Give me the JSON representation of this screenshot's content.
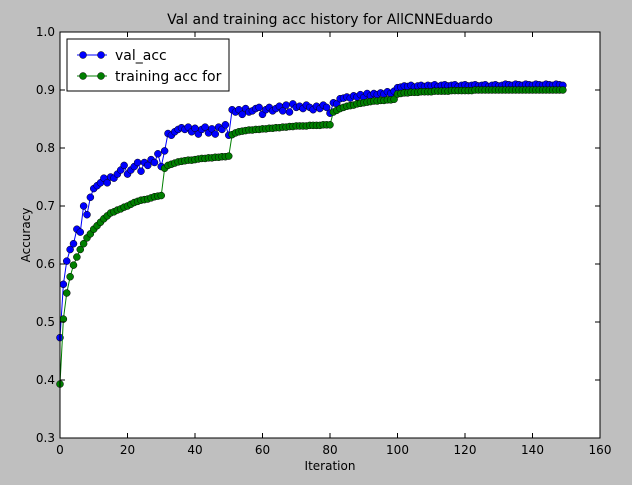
{
  "chart_data": {
    "type": "line",
    "title": "Val and training acc history for AllCNNEduardo",
    "xlabel": "Iteration",
    "ylabel": "Accuracy",
    "xlim": [
      0,
      160
    ],
    "ylim": [
      0.3,
      1.0
    ],
    "xticks": [
      0,
      20,
      40,
      60,
      80,
      100,
      120,
      140,
      160
    ],
    "yticks": [
      0.3,
      0.4,
      0.5,
      0.6,
      0.7,
      0.8,
      0.9,
      1.0
    ],
    "grid": false,
    "legend_position": "top-left",
    "series": [
      {
        "name": "val_acc",
        "color": "#0000ff",
        "marker": "circle",
        "x": [
          0,
          1,
          2,
          3,
          4,
          5,
          6,
          7,
          8,
          9,
          10,
          11,
          12,
          13,
          14,
          15,
          16,
          17,
          18,
          19,
          20,
          21,
          22,
          23,
          24,
          25,
          26,
          27,
          28,
          29,
          30,
          31,
          32,
          33,
          34,
          35,
          36,
          37,
          38,
          39,
          40,
          41,
          42,
          43,
          44,
          45,
          46,
          47,
          48,
          49,
          50,
          51,
          52,
          53,
          54,
          55,
          56,
          57,
          58,
          59,
          60,
          61,
          62,
          63,
          64,
          65,
          66,
          67,
          68,
          69,
          70,
          71,
          72,
          73,
          74,
          75,
          76,
          77,
          78,
          79,
          80,
          81,
          82,
          83,
          84,
          85,
          86,
          87,
          88,
          89,
          90,
          91,
          92,
          93,
          94,
          95,
          96,
          97,
          98,
          99,
          100,
          101,
          102,
          103,
          104,
          105,
          106,
          107,
          108,
          109,
          110,
          111,
          112,
          113,
          114,
          115,
          116,
          117,
          118,
          119,
          120,
          121,
          122,
          123,
          124,
          125,
          126,
          127,
          128,
          129,
          130,
          131,
          132,
          133,
          134,
          135,
          136,
          137,
          138,
          139,
          140,
          141,
          142,
          143,
          144,
          145,
          146,
          147,
          148,
          149
        ],
        "y": [
          0.473,
          0.565,
          0.605,
          0.625,
          0.635,
          0.66,
          0.655,
          0.7,
          0.685,
          0.715,
          0.73,
          0.735,
          0.74,
          0.748,
          0.74,
          0.75,
          0.748,
          0.755,
          0.762,
          0.77,
          0.755,
          0.762,
          0.768,
          0.775,
          0.76,
          0.775,
          0.77,
          0.78,
          0.775,
          0.79,
          0.768,
          0.795,
          0.825,
          0.822,
          0.828,
          0.832,
          0.835,
          0.832,
          0.836,
          0.828,
          0.834,
          0.824,
          0.832,
          0.836,
          0.826,
          0.833,
          0.824,
          0.836,
          0.832,
          0.84,
          0.822,
          0.866,
          0.862,
          0.866,
          0.858,
          0.868,
          0.862,
          0.864,
          0.868,
          0.87,
          0.858,
          0.866,
          0.87,
          0.864,
          0.868,
          0.872,
          0.864,
          0.874,
          0.862,
          0.876,
          0.87,
          0.872,
          0.868,
          0.874,
          0.87,
          0.866,
          0.872,
          0.868,
          0.874,
          0.87,
          0.86,
          0.878,
          0.876,
          0.885,
          0.886,
          0.888,
          0.886,
          0.89,
          0.888,
          0.892,
          0.887,
          0.894,
          0.89,
          0.894,
          0.892,
          0.895,
          0.893,
          0.897,
          0.894,
          0.898,
          0.904,
          0.905,
          0.907,
          0.906,
          0.908,
          0.905,
          0.907,
          0.908,
          0.906,
          0.908,
          0.907,
          0.909,
          0.906,
          0.908,
          0.909,
          0.907,
          0.908,
          0.909,
          0.906,
          0.908,
          0.909,
          0.907,
          0.908,
          0.909,
          0.907,
          0.908,
          0.909,
          0.906,
          0.908,
          0.909,
          0.907,
          0.908,
          0.91,
          0.909,
          0.908,
          0.91,
          0.909,
          0.908,
          0.91,
          0.909,
          0.908,
          0.91,
          0.909,
          0.908,
          0.91,
          0.909,
          0.908,
          0.91,
          0.909,
          0.908
        ]
      },
      {
        "name": "training acc for",
        "color": "#007f00",
        "marker": "circle",
        "x": [
          0,
          1,
          2,
          3,
          4,
          5,
          6,
          7,
          8,
          9,
          10,
          11,
          12,
          13,
          14,
          15,
          16,
          17,
          18,
          19,
          20,
          21,
          22,
          23,
          24,
          25,
          26,
          27,
          28,
          29,
          30,
          31,
          32,
          33,
          34,
          35,
          36,
          37,
          38,
          39,
          40,
          41,
          42,
          43,
          44,
          45,
          46,
          47,
          48,
          49,
          50,
          51,
          52,
          53,
          54,
          55,
          56,
          57,
          58,
          59,
          60,
          61,
          62,
          63,
          64,
          65,
          66,
          67,
          68,
          69,
          70,
          71,
          72,
          73,
          74,
          75,
          76,
          77,
          78,
          79,
          80,
          81,
          82,
          83,
          84,
          85,
          86,
          87,
          88,
          89,
          90,
          91,
          92,
          93,
          94,
          95,
          96,
          97,
          98,
          99,
          100,
          101,
          102,
          103,
          104,
          105,
          106,
          107,
          108,
          109,
          110,
          111,
          112,
          113,
          114,
          115,
          116,
          117,
          118,
          119,
          120,
          121,
          122,
          123,
          124,
          125,
          126,
          127,
          128,
          129,
          130,
          131,
          132,
          133,
          134,
          135,
          136,
          137,
          138,
          139,
          140,
          141,
          142,
          143,
          144,
          145,
          146,
          147,
          148,
          149
        ],
        "y": [
          0.393,
          0.505,
          0.55,
          0.578,
          0.598,
          0.612,
          0.625,
          0.635,
          0.645,
          0.652,
          0.66,
          0.666,
          0.672,
          0.678,
          0.683,
          0.688,
          0.69,
          0.693,
          0.695,
          0.698,
          0.7,
          0.703,
          0.706,
          0.708,
          0.71,
          0.711,
          0.712,
          0.714,
          0.716,
          0.717,
          0.718,
          0.765,
          0.77,
          0.772,
          0.774,
          0.776,
          0.777,
          0.778,
          0.779,
          0.779,
          0.78,
          0.781,
          0.782,
          0.782,
          0.783,
          0.783,
          0.784,
          0.784,
          0.785,
          0.785,
          0.786,
          0.823,
          0.826,
          0.828,
          0.829,
          0.83,
          0.831,
          0.831,
          0.832,
          0.832,
          0.833,
          0.833,
          0.834,
          0.834,
          0.835,
          0.835,
          0.836,
          0.836,
          0.837,
          0.837,
          0.838,
          0.838,
          0.838,
          0.838,
          0.839,
          0.839,
          0.839,
          0.839,
          0.84,
          0.84,
          0.84,
          0.862,
          0.865,
          0.868,
          0.87,
          0.872,
          0.873,
          0.874,
          0.876,
          0.877,
          0.878,
          0.879,
          0.88,
          0.881,
          0.881,
          0.882,
          0.882,
          0.883,
          0.883,
          0.884,
          0.893,
          0.894,
          0.895,
          0.895,
          0.896,
          0.896,
          0.896,
          0.897,
          0.897,
          0.897,
          0.897,
          0.898,
          0.898,
          0.898,
          0.898,
          0.898,
          0.899,
          0.899,
          0.899,
          0.899,
          0.899,
          0.899,
          0.899,
          0.9,
          0.9,
          0.9,
          0.9,
          0.9,
          0.9,
          0.9,
          0.9,
          0.9,
          0.9,
          0.9,
          0.9,
          0.9,
          0.9,
          0.9,
          0.9,
          0.9,
          0.9,
          0.9,
          0.9,
          0.9,
          0.9,
          0.9,
          0.9,
          0.9,
          0.9,
          0.9
        ]
      }
    ]
  }
}
